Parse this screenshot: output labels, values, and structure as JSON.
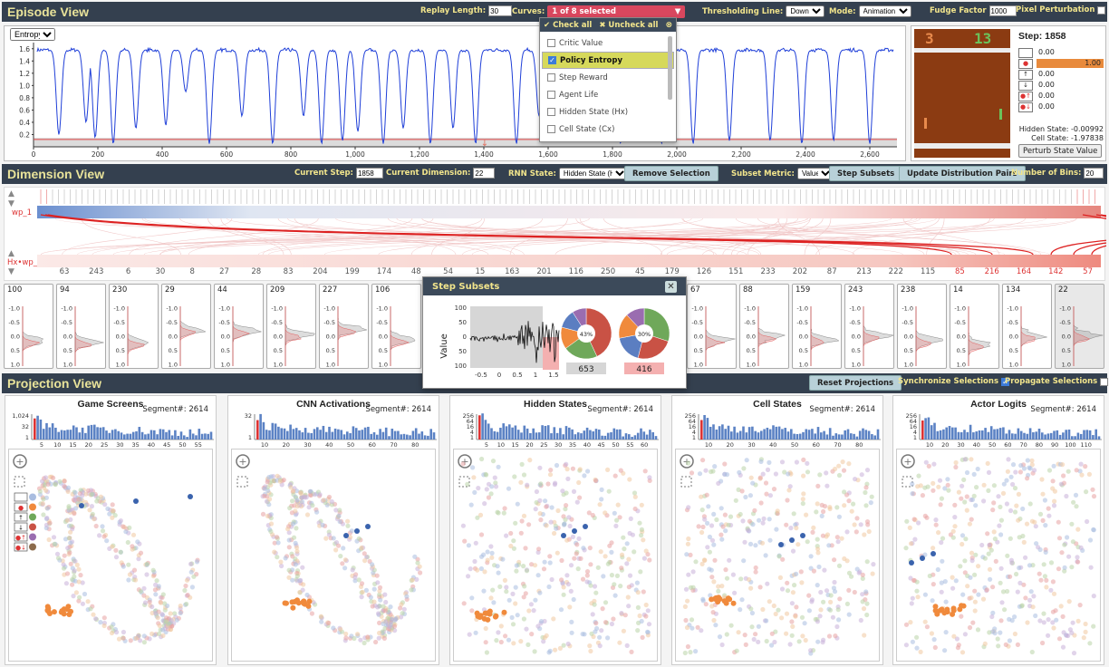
{
  "episode": {
    "title": "Episode View",
    "replay_length_label": "Replay Length:",
    "replay_length_value": "30",
    "curves_label": "Curves:",
    "curves_selected": "1 of 8 selected",
    "threshold_label": "Thresholding Line:",
    "threshold_value": "Down",
    "mode_label": "Mode:",
    "mode_value": "Animation",
    "fudge_label": "Fudge Factor",
    "fudge_value": "1000",
    "pixel_pert_label": "Pixel Perturbation",
    "metric_select": "Entropy",
    "y_ticks": [
      "1.6",
      "1.4",
      "1.2",
      "1.0",
      "0.8",
      "0.6",
      "0.4",
      "0.2"
    ],
    "x_ticks": [
      "0",
      "200",
      "400",
      "600",
      "800",
      "1,000",
      "1,200",
      "1,400",
      "1,600",
      "1,800",
      "2,000",
      "2,200",
      "2,400",
      "2,600"
    ]
  },
  "dropdown": {
    "check_all": "✔ Check all",
    "uncheck_all": "✖ Uncheck all",
    "items": [
      {
        "label": "Critic Value",
        "checked": false
      },
      {
        "label": "Policy Entropy",
        "checked": true
      },
      {
        "label": "Step Reward",
        "checked": false
      },
      {
        "label": "Agent Life",
        "checked": false
      },
      {
        "label": "Hidden State (Hx)",
        "checked": false
      },
      {
        "label": "Cell State (Cx)",
        "checked": false
      }
    ]
  },
  "game": {
    "step_label": "Step: 1858",
    "score_left": "3",
    "score_right": "13",
    "actions": [
      {
        "value": "0.00",
        "bar": 0
      },
      {
        "value": "1.00",
        "bar": 1
      },
      {
        "value": "0.00",
        "bar": 0
      },
      {
        "value": "0.00",
        "bar": 0
      },
      {
        "value": "0.00",
        "bar": 0
      },
      {
        "value": "0.00",
        "bar": 0
      }
    ],
    "hidden_state": "Hidden State: -0.00992",
    "cell_state": "Cell State: -1.97838",
    "perturb_button": "Perturb State Value",
    "accent": "#e88a3c"
  },
  "dimension": {
    "title": "Dimension View",
    "current_step_label": "Current Step:",
    "current_step_value": "1858",
    "current_dim_label": "Current Dimension:",
    "current_dim_value": "22",
    "rnn_label": "RNN State:",
    "rnn_value": "Hidden State (Hx)",
    "remove_button": "Remove Selection",
    "subset_metric_label": "Subset Metric:",
    "subset_metric_value": "Value",
    "step_subsets_button": "Step Subsets",
    "update_button": "Update Distribution Pairs",
    "bins_label": "Number of Bins:",
    "bins_value": "20",
    "row_top_label": "wp_1",
    "row_bottom_label": "Hx•wp_1",
    "bottom_numbers": [
      "63",
      "243",
      "6",
      "30",
      "8",
      "27",
      "28",
      "83",
      "204",
      "199",
      "174",
      "48",
      "54",
      "15",
      "163",
      "201",
      "116",
      "250",
      "45",
      "179",
      "126",
      "151",
      "233",
      "202",
      "87",
      "213",
      "222",
      "115",
      "85",
      "216",
      "164",
      "142",
      "57"
    ]
  },
  "minis": [
    {
      "id": "100"
    },
    {
      "id": "94"
    },
    {
      "id": "230"
    },
    {
      "id": "29"
    },
    {
      "id": "44"
    },
    {
      "id": "209"
    },
    {
      "id": "227"
    },
    {
      "id": "106"
    },
    {
      "id": "67"
    },
    {
      "id": "88"
    },
    {
      "id": "159"
    },
    {
      "id": "243"
    },
    {
      "id": "238"
    },
    {
      "id": "14"
    },
    {
      "id": "134"
    },
    {
      "id": "22"
    }
  ],
  "mini_ticks": [
    "-1.0",
    "-0.5",
    "0.0",
    "0.5",
    "1.0"
  ],
  "step_subsets": {
    "title": "Step Subsets",
    "ylabel": "Value",
    "y_ticks": [
      "100",
      "50",
      "0",
      "50",
      "100"
    ],
    "x_ticks": [
      "-0.5",
      "0",
      "0.5",
      "1",
      "1.5"
    ],
    "pie1_label": "43%",
    "pie2_label": "30%",
    "count1": "653",
    "count2": "416"
  },
  "projection": {
    "title": "Projection View",
    "reset_button": "Reset Projections",
    "sync_label": "Synchronize Selections",
    "propagate_label": "Propagate Selections",
    "cards": [
      {
        "title": "Game Screens",
        "segment": "Segment#: 2614",
        "yticks": [
          "1,024",
          "32",
          "1"
        ],
        "xticks": [
          "5",
          "10",
          "15",
          "20",
          "25",
          "30",
          "35",
          "40",
          "45",
          "50",
          "55"
        ]
      },
      {
        "title": "CNN Activations",
        "segment": "Segment#: 2614",
        "yticks": [
          "32",
          "1"
        ],
        "xticks": [
          "10",
          "20",
          "30",
          "40",
          "50",
          "60",
          "70",
          "80"
        ]
      },
      {
        "title": "Hidden States",
        "segment": "Segment#: 2614",
        "yticks": [
          "256",
          "64",
          "16",
          "4",
          "1"
        ],
        "xticks": [
          "5",
          "10",
          "15",
          "20",
          "25",
          "30",
          "35",
          "40",
          "45",
          "50",
          "55",
          "60"
        ]
      },
      {
        "title": "Cell States",
        "segment": "Segment#: 2614",
        "yticks": [
          "256",
          "64",
          "16",
          "4",
          "1"
        ],
        "xticks": [
          "10",
          "20",
          "30",
          "40",
          "50",
          "60",
          "70",
          "80"
        ]
      },
      {
        "title": "Actor Logits",
        "segment": "Segment#: 2614",
        "yticks": [
          "256",
          "64",
          "16",
          "4",
          "1"
        ],
        "xticks": [
          "10",
          "20",
          "30",
          "40",
          "50",
          "60",
          "70",
          "80",
          "90",
          "100",
          "110"
        ]
      }
    ]
  },
  "colors": {
    "header_bg": "#34404f",
    "header_text": "#f2e58c",
    "line_blue": "#1f3fd8",
    "red": "#e04444",
    "orange": "#f08a3c"
  }
}
